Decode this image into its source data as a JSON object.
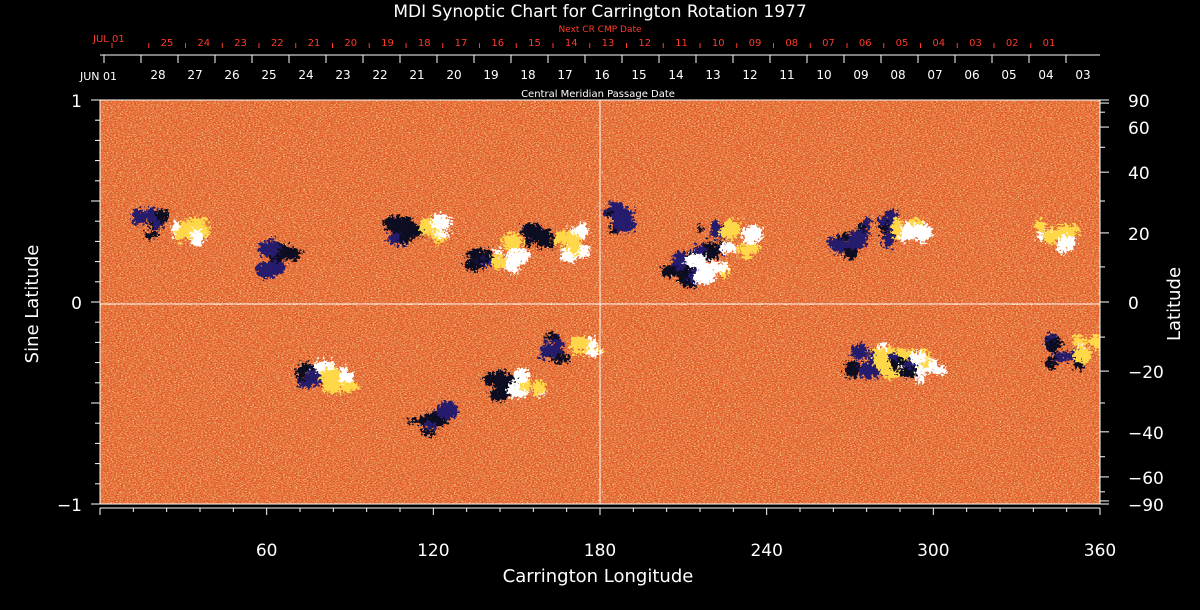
{
  "chart_data": {
    "type": "heatmap",
    "title": "MDI Synoptic Chart for Carrington Rotation 1977",
    "xlabel": "Carrington Longitude",
    "ylabel_left": "Sine Latitude",
    "ylabel_right": "Latitude",
    "xlim": [
      0,
      360
    ],
    "ylim": [
      -1,
      1
    ],
    "x_ticks": [
      60,
      120,
      180,
      240,
      300,
      360
    ],
    "y_ticks_left": [
      {
        "v": 1,
        "label": "1"
      },
      {
        "v": 0,
        "label": "0"
      },
      {
        "v": -1,
        "label": "−1"
      }
    ],
    "y_ticks_right": [
      {
        "deg": 90,
        "label": "90"
      },
      {
        "deg": 60,
        "label": "60"
      },
      {
        "deg": 40,
        "label": "40"
      },
      {
        "deg": 20,
        "label": "20"
      },
      {
        "deg": 0,
        "label": "0"
      },
      {
        "deg": -20,
        "label": "−20"
      },
      {
        "deg": -40,
        "label": "−40"
      },
      {
        "deg": -60,
        "label": "−60"
      },
      {
        "deg": -90,
        "label": "−90"
      }
    ],
    "bottom_date_axis": {
      "label": "Central Meridian Passage Date",
      "month_label": "JUN 01",
      "days": [
        "28",
        "27",
        "26",
        "25",
        "24",
        "23",
        "22",
        "21",
        "20",
        "19",
        "18",
        "17",
        "16",
        "15",
        "14",
        "13",
        "12",
        "11",
        "10",
        "09",
        "08",
        "07",
        "06",
        "05",
        "04",
        "03"
      ]
    },
    "top_date_axis": {
      "label": "Next CR CMP Date",
      "month_label": "JUL 01",
      "days": [
        "25",
        "24",
        "23",
        "22",
        "21",
        "20",
        "19",
        "18",
        "17",
        "16",
        "15",
        "14",
        "13",
        "12",
        "11",
        "10",
        "09",
        "08",
        "07",
        "06",
        "05",
        "04",
        "03",
        "02",
        "01"
      ]
    },
    "colors": {
      "background": "#e8501a",
      "positive_strong": "#ffffff",
      "positive": "#ffd84a",
      "negative": "#281e6e",
      "negative_strong": "#0a0820",
      "grid": "#ffffff",
      "top_axis": "#ff3a2a"
    },
    "active_regions": [
      {
        "lon": 25,
        "lat": 0.38,
        "polarity": "bipolar"
      },
      {
        "lon": 65,
        "lat": 0.22,
        "polarity": "negative"
      },
      {
        "lon": 115,
        "lat": 0.33,
        "polarity": "bipolar"
      },
      {
        "lon": 140,
        "lat": 0.25,
        "polarity": "bipolar"
      },
      {
        "lon": 165,
        "lat": 0.3,
        "polarity": "bipolar"
      },
      {
        "lon": 190,
        "lat": 0.42,
        "polarity": "negative"
      },
      {
        "lon": 225,
        "lat": 0.3,
        "polarity": "bipolar"
      },
      {
        "lon": 215,
        "lat": 0.15,
        "polarity": "bipolar"
      },
      {
        "lon": 270,
        "lat": 0.3,
        "polarity": "negative"
      },
      {
        "lon": 285,
        "lat": 0.36,
        "polarity": "bipolar"
      },
      {
        "lon": 344,
        "lat": 0.33,
        "polarity": "positive"
      },
      {
        "lon": 150,
        "lat": -0.42,
        "polarity": "bipolar"
      },
      {
        "lon": 170,
        "lat": -0.23,
        "polarity": "bipolar"
      },
      {
        "lon": 280,
        "lat": -0.28,
        "polarity": "bipolar"
      },
      {
        "lon": 295,
        "lat": -0.32,
        "polarity": "bipolar"
      },
      {
        "lon": 352,
        "lat": -0.25,
        "polarity": "bipolar"
      },
      {
        "lon": 120,
        "lat": -0.6,
        "polarity": "negative"
      },
      {
        "lon": 80,
        "lat": -0.38,
        "polarity": "bipolar"
      }
    ]
  }
}
